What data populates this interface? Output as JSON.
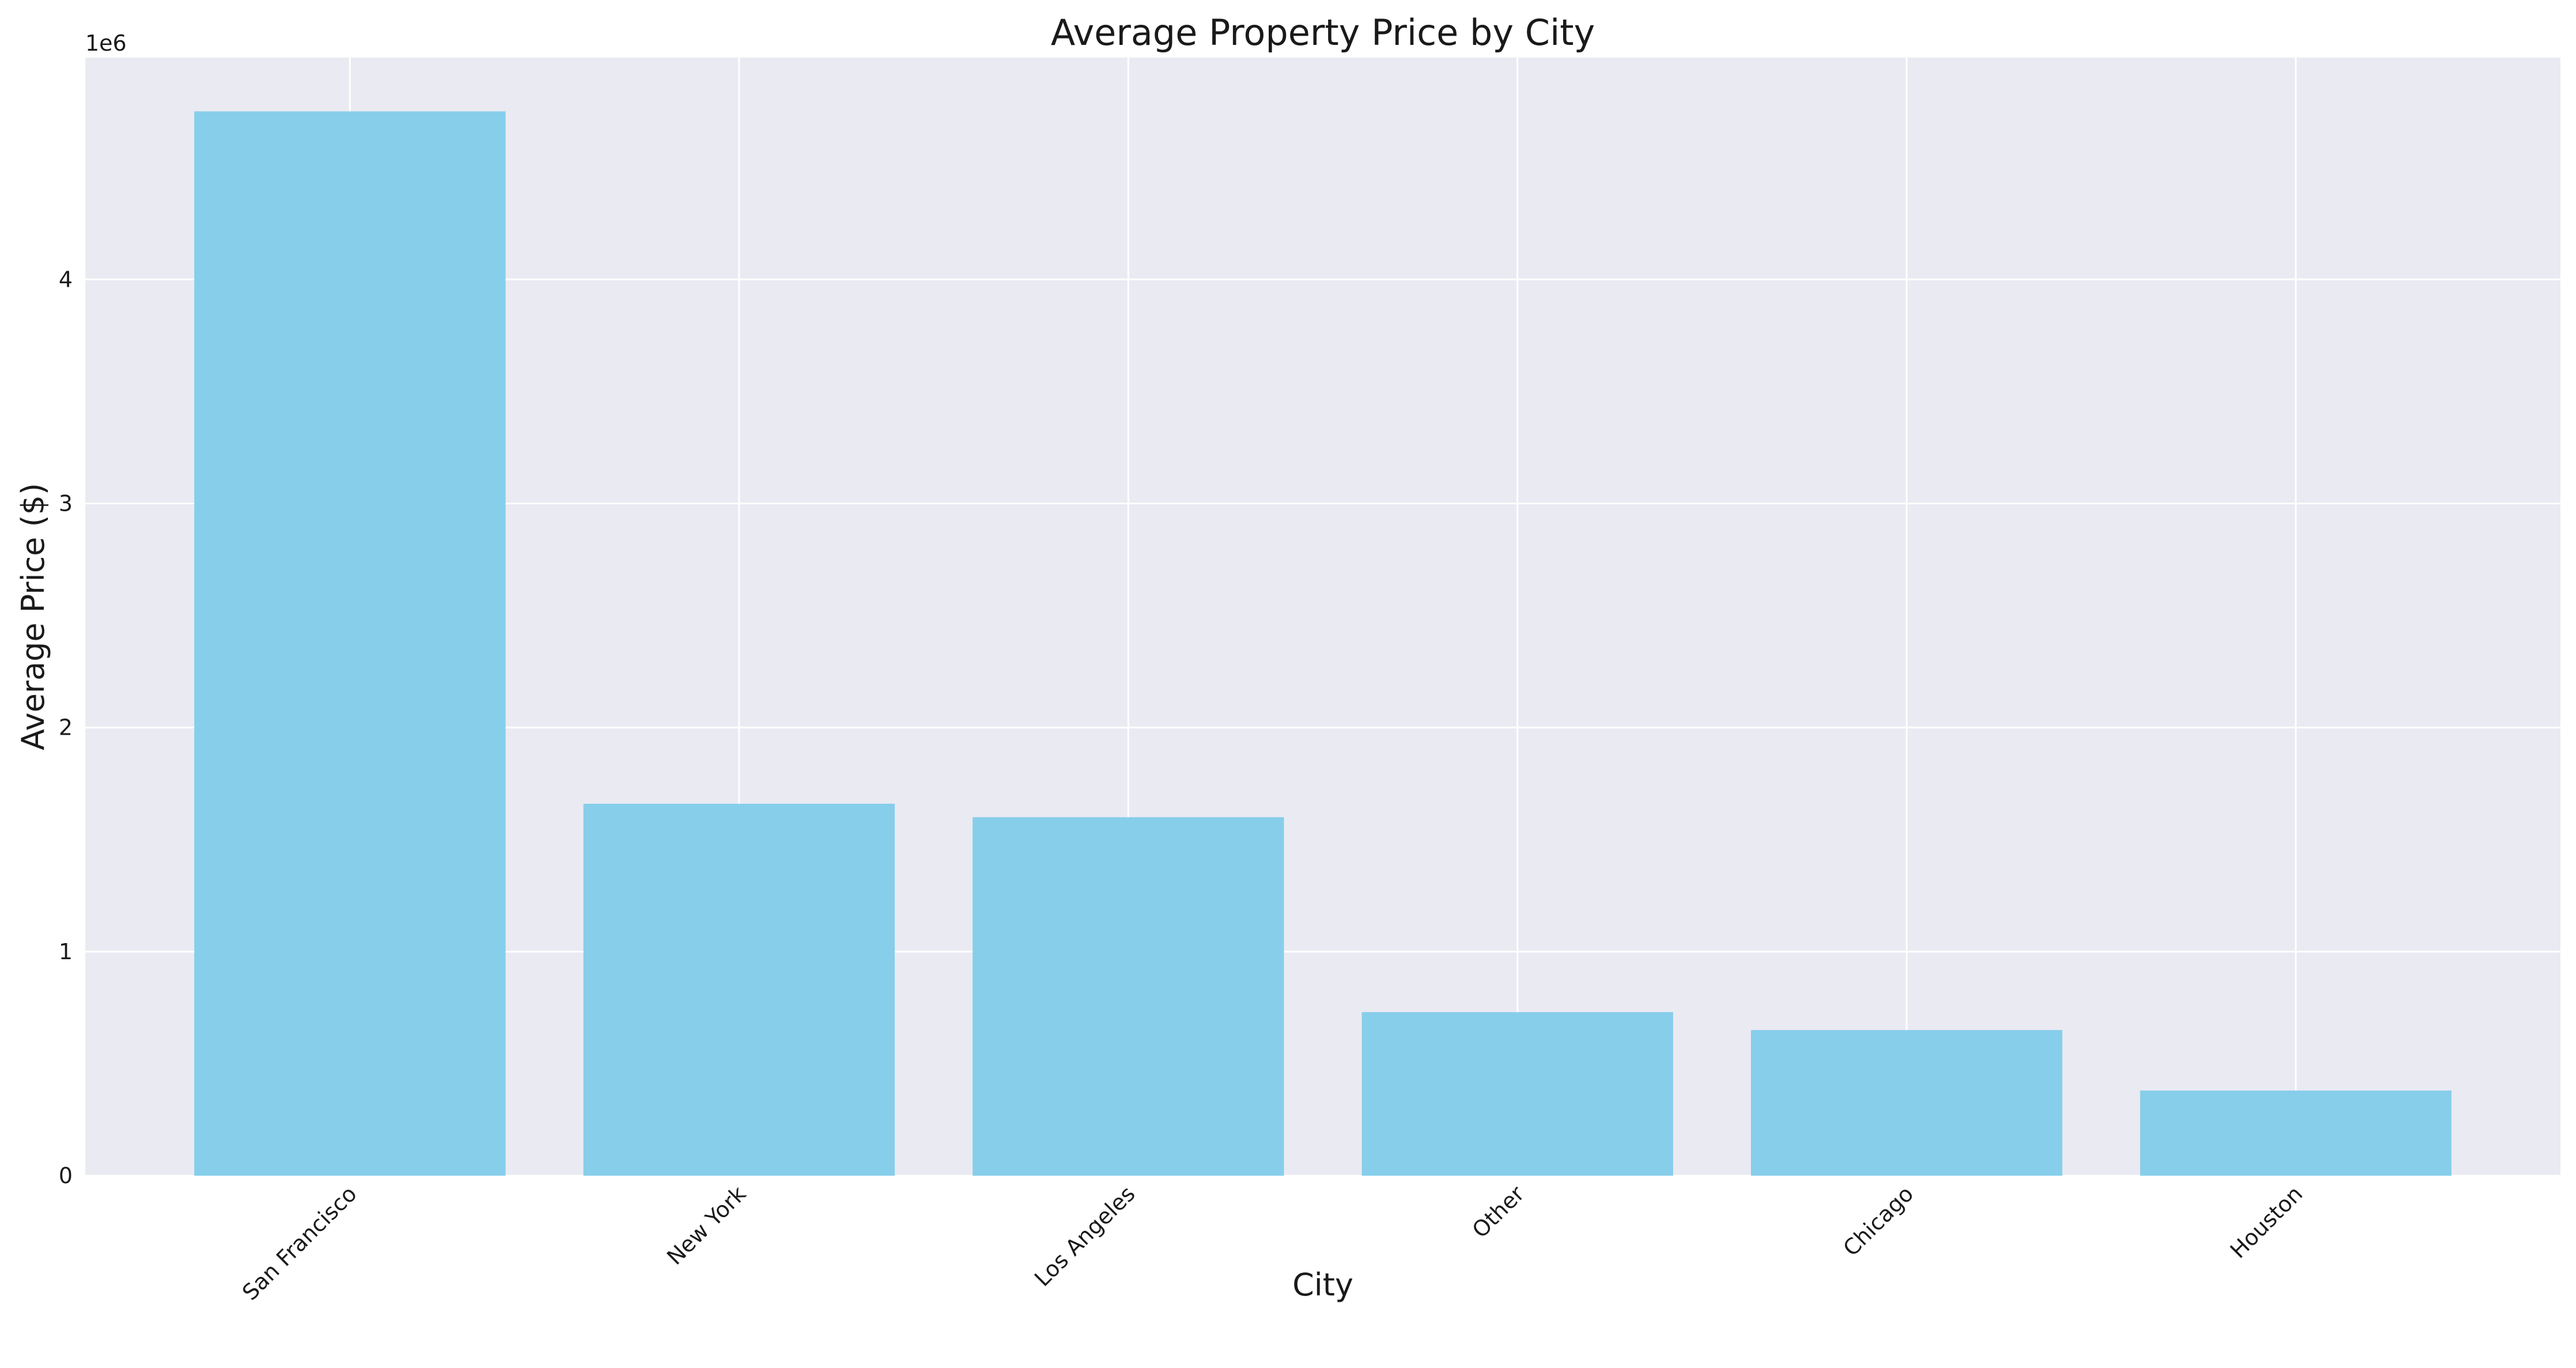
{
  "chart_data": {
    "type": "bar",
    "title": "Average Property Price by City",
    "xlabel": "City",
    "ylabel": "Average Price ($)",
    "y_offset_label": "1e6",
    "categories": [
      "San Francisco",
      "New York",
      "Los Angeles",
      "Other",
      "Chicago",
      "Houston"
    ],
    "values": [
      4750000,
      1660000,
      1600000,
      730000,
      650000,
      380000
    ],
    "ylim": [
      0,
      4990000
    ],
    "yticks": [
      0,
      1000000,
      2000000,
      3000000,
      4000000
    ],
    "ytick_labels": [
      "0",
      "1",
      "2",
      "3",
      "4"
    ],
    "grid": true,
    "legend": "none",
    "colors": {
      "bar": "#87ceeb",
      "plot_background": "#eaeaf2",
      "grid": "#ffffff"
    }
  }
}
